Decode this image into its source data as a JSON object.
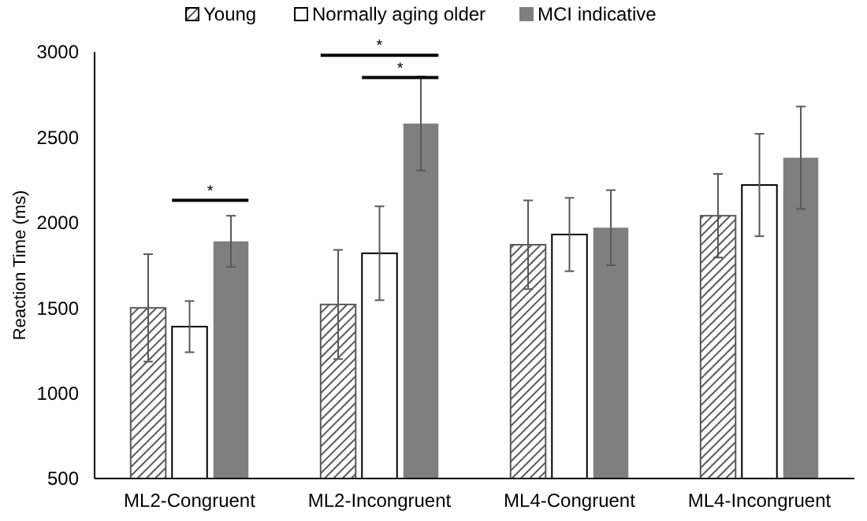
{
  "chart_data": {
    "type": "bar",
    "ylabel": "Reaction Time (ms)",
    "categories": [
      "ML2-Congruent",
      "ML2-Incongruent",
      "ML4-Congruent",
      "ML4-Incongruent"
    ],
    "series": [
      {
        "name": "Young",
        "color": "#595959",
        "values": [
          1500,
          1520,
          1870,
          2040
        ],
        "errors": [
          315,
          320,
          260,
          245
        ]
      },
      {
        "name": "Normally aging older",
        "color": "#ffffff",
        "values": [
          1390,
          1820,
          1930,
          2220
        ],
        "errors": [
          150,
          275,
          215,
          300
        ]
      },
      {
        "name": "MCI indicative",
        "color": "#7f7f7f",
        "values": [
          1890,
          2580,
          1970,
          2380
        ],
        "errors": [
          150,
          275,
          220,
          300
        ]
      }
    ],
    "ylim": [
      500,
      3000
    ],
    "yticks": [
      500,
      1000,
      1500,
      2000,
      2500,
      3000
    ],
    "grid": false,
    "legend": "top",
    "annotations": [
      "*",
      "*",
      "*"
    ]
  }
}
